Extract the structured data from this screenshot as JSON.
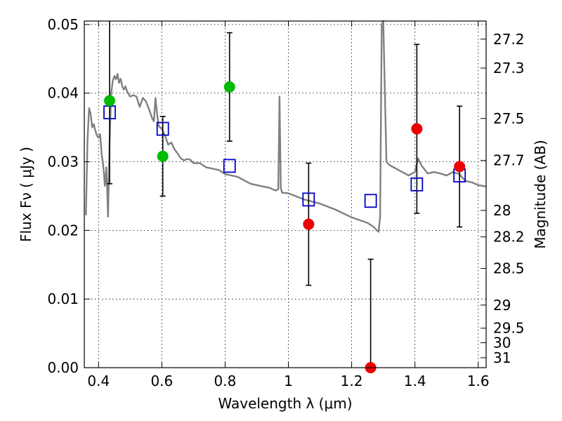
{
  "chart_data": {
    "type": "scatter",
    "xlabel": "Wavelength  λ (μm)",
    "ylabel": "Flux  Fν  ( μJy )",
    "ylabel_right": "Magnitude (AB)",
    "xlim": [
      0.355,
      1.625
    ],
    "ylim": [
      0.0,
      0.0505
    ],
    "grid": true,
    "x_ticks": [
      {
        "value": 0.4,
        "label": "0.4"
      },
      {
        "value": 0.6,
        "label": "0.6"
      },
      {
        "value": 0.8,
        "label": "0.8"
      },
      {
        "value": 1.0,
        "label": "1"
      },
      {
        "value": 1.2,
        "label": "1.2"
      },
      {
        "value": 1.4,
        "label": "1.4"
      },
      {
        "value": 1.6,
        "label": "1.6"
      }
    ],
    "y_ticks": [
      {
        "value": 0.0,
        "label": "0.00"
      },
      {
        "value": 0.01,
        "label": "0.01"
      },
      {
        "value": 0.02,
        "label": "0.02"
      },
      {
        "value": 0.03,
        "label": "0.03"
      },
      {
        "value": 0.04,
        "label": "0.04"
      },
      {
        "value": 0.05,
        "label": "0.05"
      }
    ],
    "mag_ticks": [
      {
        "mag": 27.2,
        "label": "27.2"
      },
      {
        "mag": 27.3,
        "label": "27.3"
      },
      {
        "mag": 27.5,
        "label": "27.5"
      },
      {
        "mag": 27.7,
        "label": "27.7"
      },
      {
        "mag": 28.0,
        "label": "28"
      },
      {
        "mag": 28.2,
        "label": "28.2"
      },
      {
        "mag": 28.5,
        "label": "28.5"
      },
      {
        "mag": 29.0,
        "label": "29"
      },
      {
        "mag": 29.5,
        "label": "29.5"
      },
      {
        "mag": 30.0,
        "label": "30"
      },
      {
        "mag": 31.0,
        "label": "31"
      }
    ],
    "series": [
      {
        "kind": "line",
        "color": "#808080",
        "x": [
          0.36,
          0.365,
          0.37,
          0.375,
          0.38,
          0.385,
          0.39,
          0.395,
          0.4,
          0.405,
          0.41,
          0.415,
          0.42,
          0.425,
          0.43,
          0.435,
          0.44,
          0.445,
          0.45,
          0.455,
          0.46,
          0.465,
          0.47,
          0.475,
          0.48,
          0.485,
          0.49,
          0.5,
          0.51,
          0.52,
          0.53,
          0.54,
          0.55,
          0.56,
          0.57,
          0.575,
          0.58,
          0.585,
          0.59,
          0.6,
          0.61,
          0.62,
          0.63,
          0.64,
          0.65,
          0.66,
          0.67,
          0.68,
          0.69,
          0.7,
          0.72,
          0.74,
          0.76,
          0.78,
          0.8,
          0.82,
          0.84,
          0.86,
          0.88,
          0.9,
          0.92,
          0.94,
          0.96,
          0.968,
          0.972,
          0.976,
          0.98,
          1.0,
          1.05,
          1.1,
          1.15,
          1.2,
          1.25,
          1.27,
          1.28,
          1.285,
          1.29,
          1.295,
          1.3,
          1.305,
          1.31,
          1.32,
          1.34,
          1.36,
          1.38,
          1.4,
          1.41,
          1.42,
          1.44,
          1.46,
          1.48,
          1.5,
          1.52,
          1.54,
          1.56,
          1.58,
          1.6,
          1.625
        ],
        "y": [
          0.0222,
          0.033,
          0.0378,
          0.037,
          0.035,
          0.0355,
          0.0345,
          0.0338,
          0.0335,
          0.034,
          0.031,
          0.0295,
          0.0265,
          0.0292,
          0.022,
          0.033,
          0.04,
          0.0418,
          0.0425,
          0.042,
          0.0428,
          0.0415,
          0.0421,
          0.041,
          0.0405,
          0.041,
          0.0403,
          0.0395,
          0.0397,
          0.0395,
          0.038,
          0.0393,
          0.0388,
          0.0376,
          0.0363,
          0.0359,
          0.0393,
          0.037,
          0.0352,
          0.0348,
          0.0338,
          0.0325,
          0.0328,
          0.0318,
          0.0312,
          0.0305,
          0.0302,
          0.0304,
          0.0303,
          0.0298,
          0.0298,
          0.0292,
          0.029,
          0.0288,
          0.0282,
          0.028,
          0.0278,
          0.0273,
          0.0268,
          0.0266,
          0.0264,
          0.0262,
          0.0258,
          0.026,
          0.0395,
          0.0262,
          0.0255,
          0.0254,
          0.0245,
          0.0239,
          0.023,
          0.0219,
          0.0211,
          0.0205,
          0.02,
          0.0198,
          0.022,
          0.05,
          0.052,
          0.04,
          0.03,
          0.0295,
          0.029,
          0.0285,
          0.028,
          0.0285,
          0.0305,
          0.0295,
          0.0283,
          0.0285,
          0.0283,
          0.028,
          0.0285,
          0.0282,
          0.0272,
          0.027,
          0.0266,
          0.0264
        ]
      },
      {
        "kind": "open-squares",
        "color": "#0000cc",
        "x": [
          0.435,
          0.603,
          0.814,
          1.064,
          1.26,
          1.406,
          1.541
        ],
        "y": [
          0.0372,
          0.0348,
          0.0294,
          0.0245,
          0.0243,
          0.0267,
          0.028
        ]
      },
      {
        "kind": "green-points",
        "color": "#00bb00",
        "x": [
          0.435,
          0.603,
          0.814
        ],
        "y": [
          0.0389,
          0.0308,
          0.0409
        ],
        "err": [
          0.0121,
          0.0058,
          0.0079
        ]
      },
      {
        "kind": "red-points",
        "color": "#ee0000",
        "x": [
          1.064,
          1.26,
          1.406,
          1.541
        ],
        "y": [
          0.0209,
          0.0,
          0.0348,
          0.0293
        ],
        "err": [
          0.0089,
          0.0158,
          0.0123,
          0.0088
        ]
      }
    ]
  }
}
